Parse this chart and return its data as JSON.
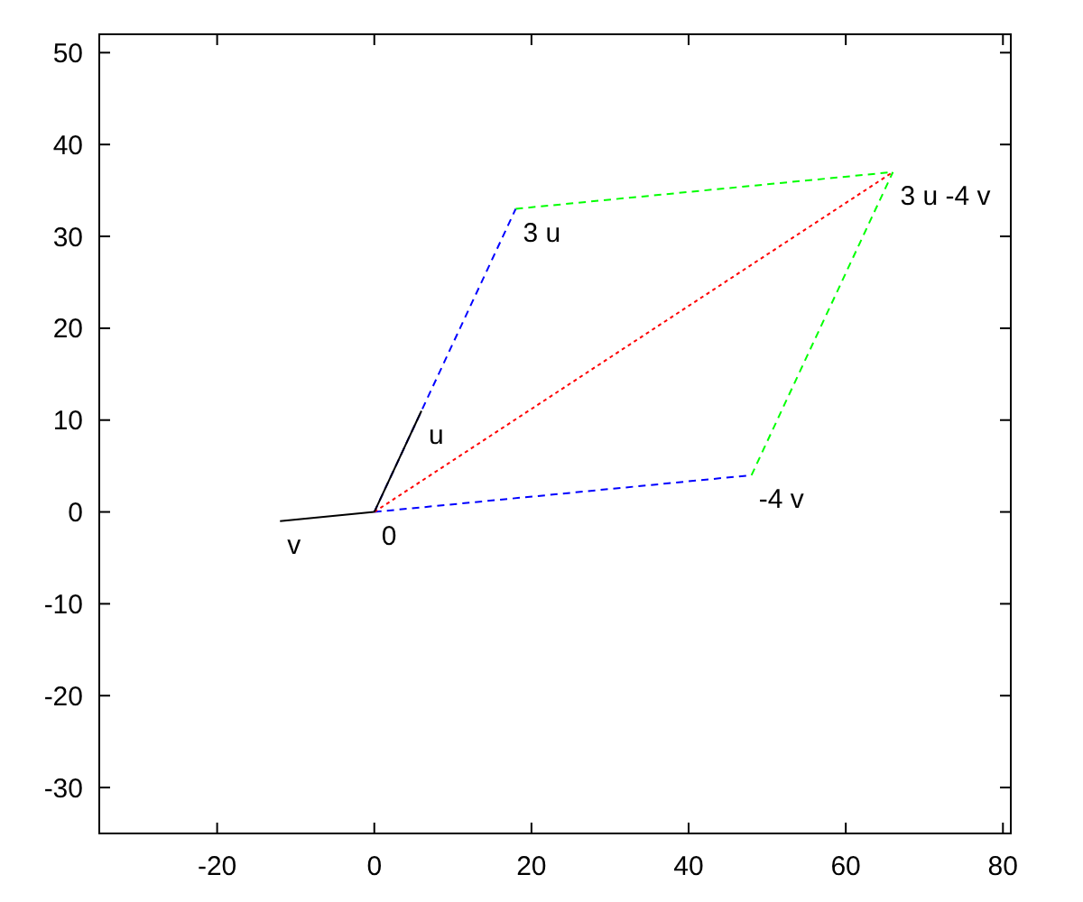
{
  "chart_data": {
    "type": "line",
    "xlim": [
      -35,
      81
    ],
    "ylim": [
      -35,
      52
    ],
    "xticks": [
      -20,
      0,
      20,
      40,
      60,
      80
    ],
    "yticks": [
      -30,
      -20,
      -10,
      0,
      10,
      20,
      30,
      40,
      50
    ],
    "grid": false,
    "series": [
      {
        "color": "#0000ff",
        "line_style": "dashed",
        "x": [
          0,
          18
        ],
        "values": [
          0,
          33
        ]
      },
      {
        "color": "#0000ff",
        "line_style": "dashed",
        "x": [
          0,
          48
        ],
        "values": [
          0,
          4
        ]
      },
      {
        "color": "#00ff00",
        "line_style": "dashed",
        "x": [
          18,
          66
        ],
        "values": [
          33,
          37
        ]
      },
      {
        "color": "#00ff00",
        "line_style": "dashed",
        "x": [
          48,
          66
        ],
        "values": [
          4,
          37
        ]
      },
      {
        "color": "#ff0000",
        "line_style": "dotted",
        "x": [
          0,
          66
        ],
        "values": [
          0,
          37
        ]
      },
      {
        "color": "#000000",
        "line_style": "solid",
        "x": [
          0,
          6
        ],
        "values": [
          0,
          11
        ]
      },
      {
        "color": "#000000",
        "line_style": "solid",
        "x": [
          0,
          -12
        ],
        "values": [
          0,
          -1
        ]
      }
    ],
    "annotations": [
      {
        "text": "u",
        "x": 6,
        "y": 11
      },
      {
        "text": "v",
        "x": -12,
        "y": -1
      },
      {
        "text": "0",
        "x": 0,
        "y": 0
      },
      {
        "text": "3 u",
        "x": 18,
        "y": 33
      },
      {
        "text": "-4 v",
        "x": 48,
        "y": 4
      },
      {
        "text": "3 u -4 v",
        "x": 66,
        "y": 37
      }
    ]
  }
}
